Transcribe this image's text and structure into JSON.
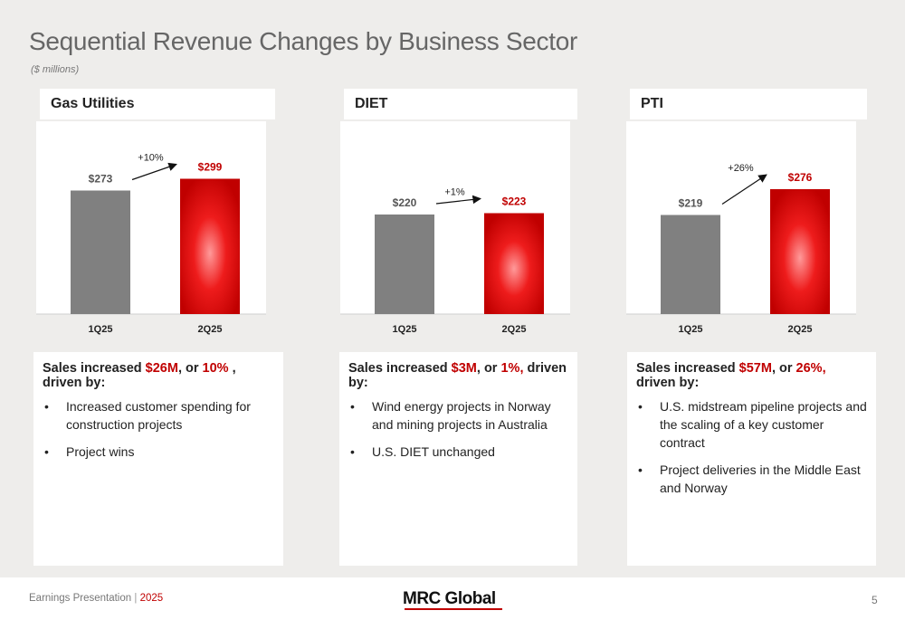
{
  "title": "Sequential Revenue Changes by Business Sector",
  "subtitle": "($ millions)",
  "colors": {
    "prior_bar": "#808080",
    "current_bar": "#c00000",
    "current_bar_glow": "#ff9a9a",
    "accent_text": "#c00000"
  },
  "sectors": [
    {
      "name": "Gas Utilities",
      "summary": {
        "prefix": "Sales increased ",
        "amount": "$26M",
        "mid": ", or ",
        "pct": "10%",
        "suffix": " , driven by:"
      },
      "bullets": [
        "Increased customer spending for construction projects",
        "Project wins"
      ]
    },
    {
      "name": "DIET",
      "summary": {
        "prefix": "Sales increased ",
        "amount": "$3M",
        "mid": ", or ",
        "pct": "1%,",
        "suffix": " driven by:"
      },
      "bullets": [
        "Wind energy projects in Norway and mining projects in Australia",
        "U.S. DIET unchanged"
      ]
    },
    {
      "name": "PTI",
      "summary": {
        "prefix": "Sales increased ",
        "amount": "$57M",
        "mid": ", or ",
        "pct": "26%,",
        "suffix": " driven by:"
      },
      "bullets": [
        "U.S. midstream pipeline projects and the scaling of a key customer contract",
        "Project deliveries in the Middle East and Norway"
      ]
    }
  ],
  "chart_data": [
    {
      "type": "bar",
      "title": "Gas Utilities",
      "categories": [
        "1Q25",
        "2Q25"
      ],
      "values": [
        273,
        299
      ],
      "labels": [
        "$273",
        "$299"
      ],
      "change_label": "+10%"
    },
    {
      "type": "bar",
      "title": "DIET",
      "categories": [
        "1Q25",
        "2Q25"
      ],
      "values": [
        220,
        223
      ],
      "labels": [
        "$220",
        "$223"
      ],
      "change_label": "+1%"
    },
    {
      "type": "bar",
      "title": "PTI",
      "categories": [
        "1Q25",
        "2Q25"
      ],
      "values": [
        219,
        276
      ],
      "labels": [
        "$219",
        "$276"
      ],
      "change_label": "+26%"
    }
  ],
  "footer": {
    "left": "Earnings Presentation",
    "separator": "|",
    "year": "2025",
    "logo": "MRC Global",
    "page": "5"
  }
}
